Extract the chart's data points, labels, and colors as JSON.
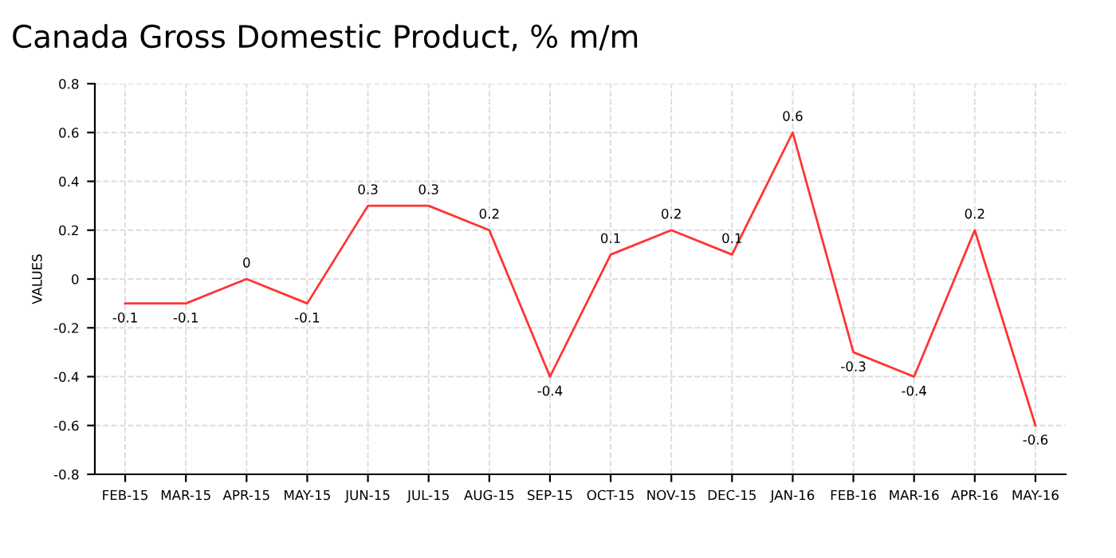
{
  "chart_data": {
    "type": "line",
    "title": "Canada Gross Domestic Product, % m/m",
    "ylabel": "VALUES",
    "categories": [
      "FEB-15",
      "MAR-15",
      "APR-15",
      "MAY-15",
      "JUN-15",
      "JUL-15",
      "AUG-15",
      "SEP-15",
      "OCT-15",
      "NOV-15",
      "DEC-15",
      "JAN-16",
      "FEB-16",
      "MAR-16",
      "APR-16",
      "MAY-16"
    ],
    "values": [
      -0.1,
      -0.1,
      0,
      -0.1,
      0.3,
      0.3,
      0.2,
      -0.4,
      0.1,
      0.2,
      0.1,
      0.6,
      -0.3,
      -0.4,
      0.2,
      -0.6
    ],
    "color": "#ff3333",
    "ylim": [
      -0.8,
      0.8
    ],
    "yticks": [
      -0.8,
      -0.6,
      -0.4,
      -0.2,
      0,
      0.2,
      0.4,
      0.6,
      0.8
    ],
    "grid": true,
    "marker": "none",
    "line_style": "solid",
    "data_labels": true
  }
}
